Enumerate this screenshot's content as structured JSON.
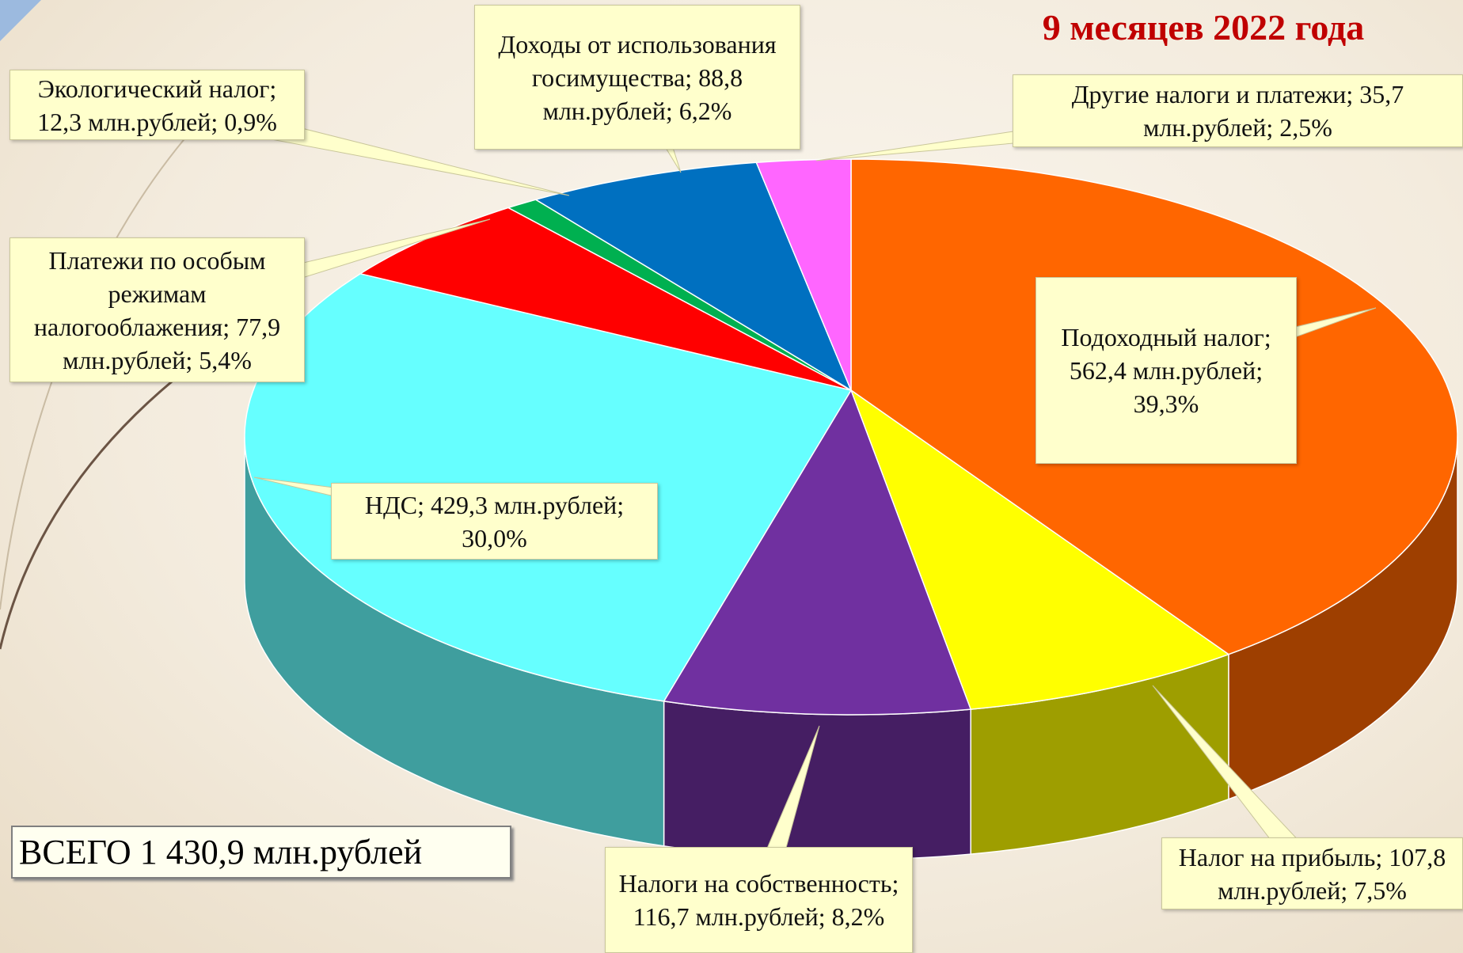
{
  "chart_data": {
    "type": "pie3d",
    "title": "9 месяцев 2022 года",
    "categories": [
      "Подоходный налог;",
      "Налог на прибыль;",
      "Налоги на собственность;",
      "НДС;",
      "Платежи по особым режимам налогооблажения;",
      "Экологический налог;",
      "Доходы от использования госимущества;",
      "Другие налоги и платежи;"
    ],
    "values": [
      562.4,
      107.8,
      116.7,
      429.3,
      77.9,
      12.3,
      88.8,
      35.7
    ],
    "value_labels": [
      "562,4 млн.рублей;",
      "107,8 млн.рублей;",
      "116,7 млн.рублей;",
      "429,3 млн.рублей;",
      "77,9 млн.рублей;",
      "12,3 млн.рублей;",
      "88,8 млн.рублей;",
      "35,7 млн.рублей;"
    ],
    "percents": [
      39.3,
      7.5,
      8.2,
      30.0,
      5.4,
      0.9,
      6.2,
      2.5
    ],
    "percent_labels": [
      "39,3%",
      "7,5%",
      "8,2%",
      "30,0%",
      "5,4%",
      "0,9%",
      "6,2%",
      "2,5%"
    ],
    "colors": [
      "#ff6600",
      "#ffff00",
      "#7030a0",
      "#66ffff",
      "#ff0000",
      "#00b050",
      "#0070c0",
      "#ff66ff"
    ],
    "total_label": "ВСЕГО 1 430,9 млн.рублей"
  }
}
